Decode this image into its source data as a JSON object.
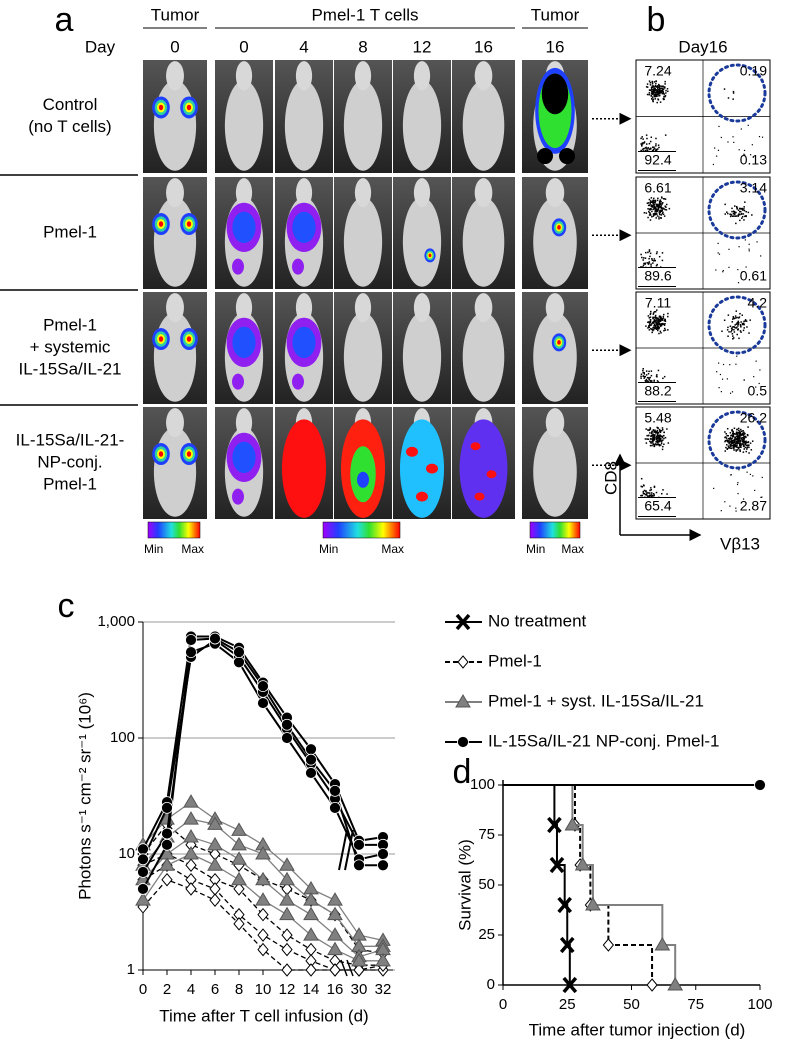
{
  "panel_a": {
    "label": "a",
    "group_headers": [
      "Tumor",
      "Pmel-1 T cells",
      "Tumor"
    ],
    "day_label": "Day",
    "days": [
      "0",
      "0",
      "4",
      "8",
      "12",
      "16",
      "16"
    ],
    "row_labels": [
      [
        "Control",
        "(no T cells)"
      ],
      [
        "Pmel-1"
      ],
      [
        "Pmel-1",
        "+ systemic",
        "IL-15Sa/IL-21"
      ],
      [
        "IL-15Sa/IL-21-",
        "NP-conj.",
        "Pmel-1"
      ]
    ],
    "scale_min": "Min",
    "scale_max": "Max"
  },
  "panel_b": {
    "label": "b",
    "title": "Day16",
    "quadrants": [
      [
        "7.24",
        "0.19",
        "92.4",
        "0.13"
      ],
      [
        "6.61",
        "3.14",
        "89.6",
        "0.61"
      ],
      [
        "7.11",
        "4.2",
        "88.2",
        "0.5"
      ],
      [
        "5.48",
        "26.2",
        "65.4",
        "2.87"
      ]
    ],
    "y_label": "CD8",
    "x_label": "Vβ13"
  },
  "chart_data": [
    {
      "type": "line",
      "label": "c",
      "log_scale": true,
      "grid": true,
      "categories": [
        "0",
        "2",
        "4",
        "6",
        "8",
        "10",
        "12",
        "14",
        "16",
        "30",
        "32"
      ],
      "ylim": [
        1,
        1000
      ],
      "yticks": [
        {
          "value": 1000,
          "label": "1,000"
        },
        100,
        10,
        1
      ],
      "y_label": "Photons s⁻¹ cm⁻² sr⁻¹ (10⁶)",
      "x_label": "Time after T cell infusion (d)",
      "series": [
        {
          "name": "No treatment",
          "marker": "x",
          "line_style": "solid",
          "color": "#000000",
          "mice": []
        },
        {
          "name": "Pmel-1",
          "marker": "diamond",
          "line_style": "dashed",
          "color": "#000000",
          "mice": [
            {
              "values": [
                10,
                18,
                12,
                10,
                8,
                6,
                5,
                4,
                3,
                1.5,
                1.4
              ]
            },
            {
              "values": [
                8,
                10,
                8,
                6,
                5,
                3,
                2,
                1.5,
                1.2,
                1.1,
                1.1
              ]
            },
            {
              "values": [
                6,
                8,
                6,
                5,
                3,
                2,
                1.5,
                1.2,
                1,
                1,
                1
              ]
            },
            {
              "values": [
                3.5,
                6,
                5,
                4,
                2.5,
                1.5,
                1,
                1,
                1,
                1,
                1.1
              ]
            }
          ]
        },
        {
          "name": "Pmel-1 + syst. IL-15Sa/IL-21",
          "marker": "triangle",
          "line_style": "solid",
          "color": "#808080",
          "mice": [
            {
              "values": [
                12,
                20,
                28,
                20,
                16,
                12,
                8,
                5,
                4,
                2,
                1.8
              ]
            },
            {
              "values": [
                8,
                14,
                20,
                18,
                12,
                10,
                6,
                4,
                3,
                1.6,
                1.6
              ]
            },
            {
              "values": [
                6,
                10,
                14,
                12,
                9,
                6,
                4,
                3,
                2,
                1.3,
                1.5
              ]
            },
            {
              "values": [
                4,
                8,
                10,
                8,
                6,
                4,
                3,
                2,
                1.5,
                1.2,
                1.2
              ]
            }
          ]
        },
        {
          "name": "IL-15Sa/IL-21 NP-conj. Pmel-1",
          "marker": "circle",
          "line_style": "solid",
          "color": "#000000",
          "mice": [
            {
              "values": [
                11,
                28,
                750,
                750,
                600,
                300,
                150,
                80,
                40,
                13,
                14
              ]
            },
            {
              "values": [
                9,
                25,
                500,
                700,
                500,
                250,
                120,
                60,
                30,
                12,
                12
              ]
            },
            {
              "values": [
                7,
                15,
                550,
                650,
                450,
                200,
                100,
                50,
                25,
                9,
                10
              ]
            },
            {
              "values": [
                5,
                12,
                700,
                720,
                550,
                280,
                130,
                65,
                35,
                8,
                8
              ]
            }
          ]
        }
      ]
    },
    {
      "type": "step",
      "label": "d",
      "xlim": [
        0,
        100
      ],
      "xticks": [
        0,
        25,
        50,
        75,
        100
      ],
      "ylim": [
        0,
        100
      ],
      "yticks": [
        0,
        25,
        50,
        75,
        100
      ],
      "y_label": "Survival (%)",
      "x_label": "Time after tumor injection (d)",
      "series": [
        {
          "marker": "x",
          "line_style": "solid",
          "color": "#000000",
          "x": [
            0,
            20,
            21,
            24,
            25,
            26
          ],
          "values": [
            100,
            80,
            60,
            40,
            20,
            0
          ]
        },
        {
          "marker": "diamond",
          "line_style": "dashed",
          "color": "#000000",
          "x": [
            0,
            28,
            30,
            34,
            41,
            58
          ],
          "values": [
            100,
            80,
            60,
            40,
            20,
            0
          ]
        },
        {
          "marker": "triangle",
          "line_style": "solid",
          "color": "#808080",
          "x": [
            0,
            27,
            31,
            35,
            62,
            67
          ],
          "values": [
            100,
            80,
            60,
            40,
            20,
            0
          ]
        },
        {
          "marker": "circle",
          "line_style": "solid",
          "color": "#000000",
          "x": [
            0,
            100
          ],
          "values": [
            100,
            100
          ]
        }
      ]
    }
  ]
}
